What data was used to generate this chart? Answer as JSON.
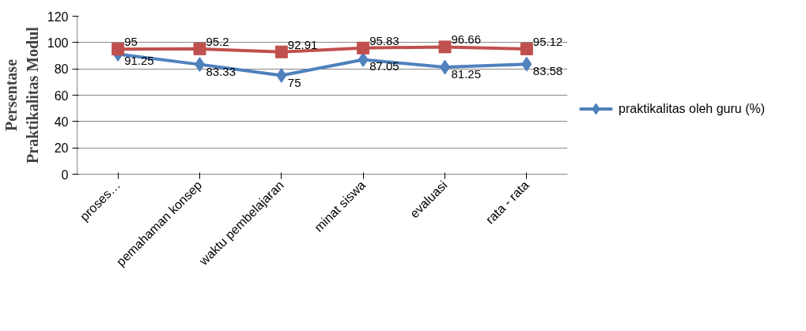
{
  "chart_data": {
    "type": "line",
    "ylabel": "Persentase\nPraktikalitas Modul",
    "categories": [
      "proses…",
      "pemahaman konsep",
      "waktu pembelajaran",
      "minat siswa",
      "evaluasi",
      "rata - rata"
    ],
    "series": [
      {
        "name": "praktikalitas oleh guru (%)",
        "color": "#4f81bd",
        "marker": "diamond",
        "values": [
          91.25,
          83.33,
          75,
          87.05,
          81.25,
          83.58
        ]
      },
      {
        "color": "#c0504d",
        "marker": "square",
        "values": [
          95,
          95.2,
          92.91,
          95.83,
          96.66,
          95.12
        ]
      }
    ],
    "ylim": [
      0,
      120
    ],
    "yticks": [
      0,
      20,
      40,
      60,
      80,
      100,
      120
    ],
    "grid": "y",
    "legend": "right",
    "data_labels": true
  }
}
